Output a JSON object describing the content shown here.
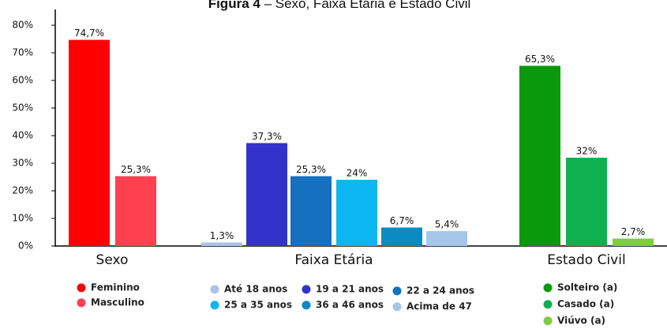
{
  "chart_data": {
    "type": "bar",
    "title_bold": "Figura 4",
    "title": "– Sexo, Faixa Etária e Estado Civil",
    "ylim": [
      0,
      80
    ],
    "yticks": [
      {
        "value": 0,
        "label": "0%"
      },
      {
        "value": 10,
        "label": "10%"
      },
      {
        "value": 20,
        "label": "20%"
      },
      {
        "value": 30,
        "label": "30%"
      },
      {
        "value": 40,
        "label": "40%"
      },
      {
        "value": 50,
        "label": "50%"
      },
      {
        "value": 60,
        "label": "60%"
      },
      {
        "value": 70,
        "label": "70%"
      },
      {
        "value": 80,
        "label": "80%"
      }
    ],
    "groups": [
      {
        "name": "Sexo",
        "bars": [
          {
            "name": "Feminino",
            "color": "#ff0000",
            "value": 74.7,
            "value_label": "74,7%"
          },
          {
            "name": "Masculino",
            "color": "#ff4050",
            "value": 25.3,
            "value_label": "25,3%"
          }
        ]
      },
      {
        "name": "Faixa Etária",
        "bars": [
          {
            "name": "Até 18 anos",
            "color": "#a9c4e6",
            "value": 1.3,
            "value_label": "1,3%"
          },
          {
            "name": "19 a 21 anos",
            "color": "#3333cc",
            "value": 37.3,
            "value_label": "37,3%"
          },
          {
            "name": "22 a 24 anos",
            "color": "#1570c0",
            "value": 25.3,
            "value_label": "25,3%"
          },
          {
            "name": "25 a 35 anos",
            "color": "#0cb6f0",
            "value": 24,
            "value_label": "24%"
          },
          {
            "name": "36 a 46 anos",
            "color": "#0a8bc2",
            "value": 6.7,
            "value_label": "6,7%"
          },
          {
            "name": "Acima de 47",
            "color": "#a6c6ea",
            "value": 5.4,
            "value_label": "5,4%"
          }
        ]
      },
      {
        "name": "Estado Civil",
        "bars": [
          {
            "name": "Solteiro (a)",
            "color": "#0a990a",
            "value": 65.3,
            "value_label": "65,3%"
          },
          {
            "name": "Casado (a)",
            "color": "#10b050",
            "value": 32,
            "value_label": "32%"
          },
          {
            "name": "Viúvo (a)",
            "color": "#80cc40",
            "value": 2.7,
            "value_label": "2,7%"
          }
        ]
      }
    ]
  }
}
